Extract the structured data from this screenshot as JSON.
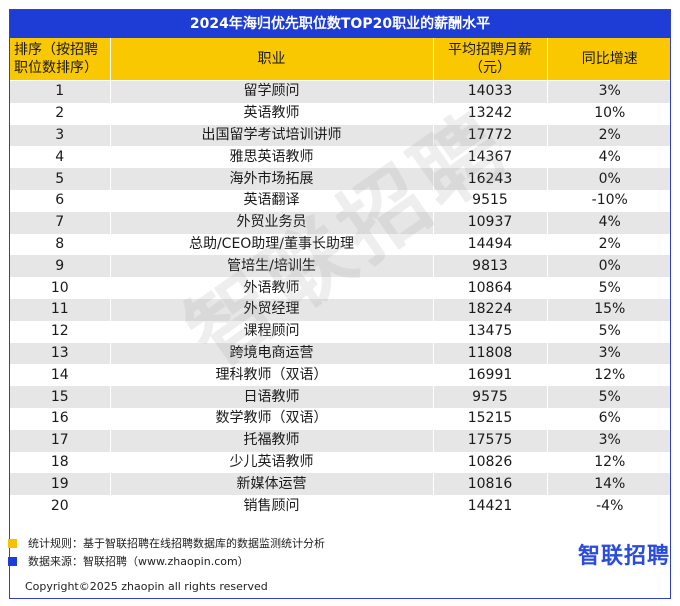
{
  "title": "2024年海归优先职位数TOP20职业的薪酬水平",
  "headers": {
    "rank": "排序（按招聘职位数排序）",
    "job": "职业",
    "salary": "平均招聘月薪（元）",
    "growth": "同比增速"
  },
  "chart_data": {
    "type": "table",
    "title": "2024年海归优先职位数TOP20职业的薪酬水平",
    "columns": [
      "排序（按招聘职位数排序）",
      "职业",
      "平均招聘月薪（元）",
      "同比增速"
    ],
    "rows": [
      {
        "rank": "1",
        "job": "留学顾问",
        "salary": "14033",
        "growth": "3%"
      },
      {
        "rank": "2",
        "job": "英语教师",
        "salary": "13242",
        "growth": "10%"
      },
      {
        "rank": "3",
        "job": "出国留学考试培训讲师",
        "salary": "17772",
        "growth": "2%"
      },
      {
        "rank": "4",
        "job": "雅思英语教师",
        "salary": "14367",
        "growth": "4%"
      },
      {
        "rank": "5",
        "job": "海外市场拓展",
        "salary": "16243",
        "growth": "0%"
      },
      {
        "rank": "6",
        "job": "英语翻译",
        "salary": "9515",
        "growth": "-10%"
      },
      {
        "rank": "7",
        "job": "外贸业务员",
        "salary": "10937",
        "growth": "4%"
      },
      {
        "rank": "8",
        "job": "总助/CEO助理/董事长助理",
        "salary": "14494",
        "growth": "2%"
      },
      {
        "rank": "9",
        "job": "管培生/培训生",
        "salary": "9813",
        "growth": "0%"
      },
      {
        "rank": "10",
        "job": "外语教师",
        "salary": "10864",
        "growth": "5%"
      },
      {
        "rank": "11",
        "job": "外贸经理",
        "salary": "18224",
        "growth": "15%"
      },
      {
        "rank": "12",
        "job": "课程顾问",
        "salary": "13475",
        "growth": "5%"
      },
      {
        "rank": "13",
        "job": "跨境电商运营",
        "salary": "11808",
        "growth": "3%"
      },
      {
        "rank": "14",
        "job": "理科教师（双语）",
        "salary": "16991",
        "growth": "12%"
      },
      {
        "rank": "15",
        "job": "日语教师",
        "salary": "9575",
        "growth": "5%"
      },
      {
        "rank": "16",
        "job": "数学教师（双语）",
        "salary": "15215",
        "growth": "6%"
      },
      {
        "rank": "17",
        "job": "托福教师",
        "salary": "17575",
        "growth": "3%"
      },
      {
        "rank": "18",
        "job": "少儿英语教师",
        "salary": "10826",
        "growth": "12%"
      },
      {
        "rank": "19",
        "job": "新媒体运营",
        "salary": "10816",
        "growth": "14%"
      },
      {
        "rank": "20",
        "job": "销售顾问",
        "salary": "14421",
        "growth": "-4%"
      }
    ]
  },
  "notes": [
    {
      "text": "统计规则：基于智联招聘在线招聘数据库的数据监测统计分析",
      "color": "#f5c200"
    },
    {
      "text": "数据来源：智联招聘（www.zhaopin.com）",
      "color": "#1e3cd6"
    }
  ],
  "watermark": "智联招聘",
  "logo": "智联招聘",
  "copyright": "Copyright©2025 zhaopin all rights reserved",
  "colors": {
    "title_bg": "#1e3cd6",
    "header_bg": "#f9c800",
    "row_alt": "#e6e6e6",
    "logo": "#2a4be0"
  }
}
